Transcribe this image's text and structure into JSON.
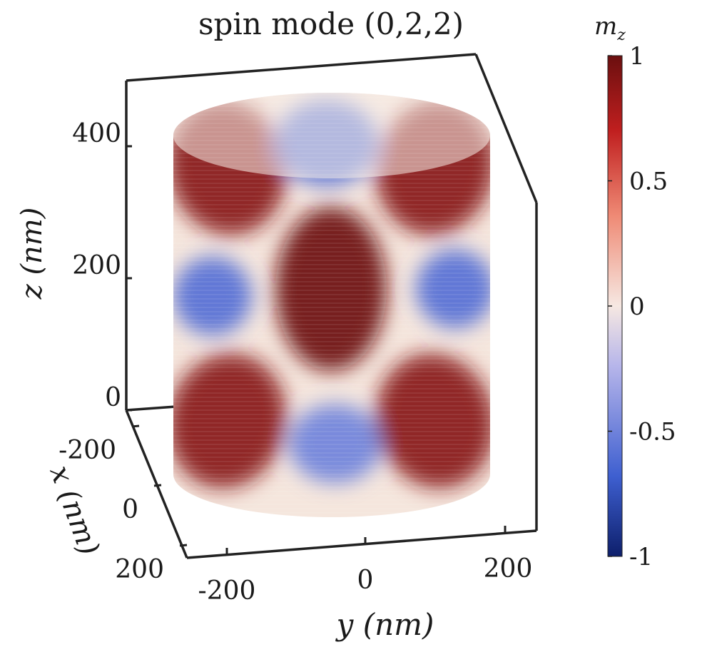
{
  "chart_data": {
    "type": "volume3d",
    "title": "spin mode (0,2,2)",
    "xlabel": "x (nm)",
    "ylabel": "y (nm)",
    "zlabel": "z (nm)",
    "x_ticks": [
      "-200",
      "0",
      "200"
    ],
    "y_ticks": [
      "-200",
      "0",
      "200"
    ],
    "z_ticks": [
      "0",
      "200",
      "400"
    ],
    "xlim": [
      -250,
      250
    ],
    "ylim": [
      -250,
      250
    ],
    "zlim": [
      0,
      500
    ],
    "colorbar": {
      "label": "m",
      "label_subscript": "z",
      "ticks": [
        "1",
        "0.5",
        "0",
        "-0.5",
        "-1"
      ],
      "range": [
        -1,
        1
      ],
      "colors": [
        "#0d1f6b",
        "#3e5fd0",
        "#b6b5ea",
        "#f6e8e2",
        "#ef8a75",
        "#c01f1f",
        "#6b0f0f"
      ]
    },
    "mode_indices": [
      0,
      2,
      2
    ],
    "blobs": [
      {
        "region": "upper-left",
        "value": 0.9
      },
      {
        "region": "upper-center",
        "value": -0.6
      },
      {
        "region": "upper-right",
        "value": 0.9
      },
      {
        "region": "middle-left",
        "value": -0.6
      },
      {
        "region": "middle-center",
        "value": 1.0
      },
      {
        "region": "middle-right",
        "value": -0.6
      },
      {
        "region": "lower-left",
        "value": 0.9
      },
      {
        "region": "lower-center",
        "value": -0.5
      },
      {
        "region": "lower-right",
        "value": 0.9
      }
    ]
  }
}
